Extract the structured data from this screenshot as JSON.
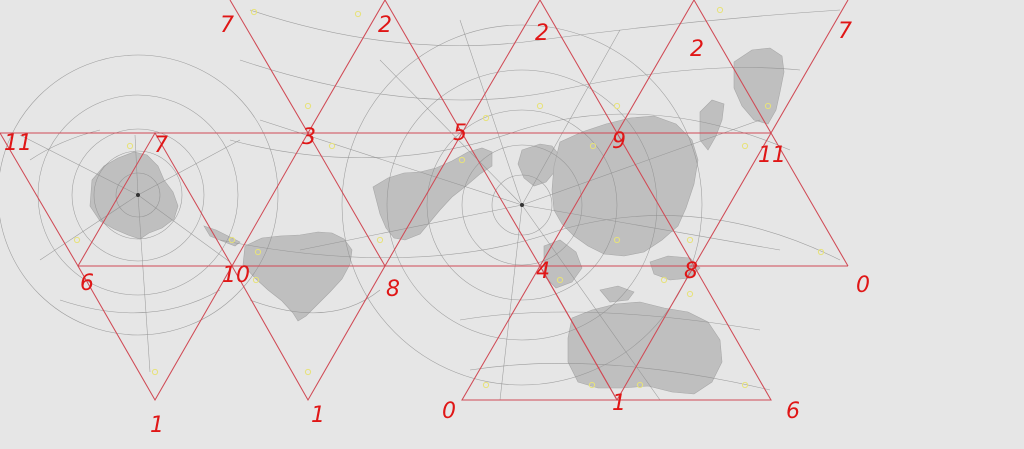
{
  "map": {
    "projection": "Dymaxion icosahedral (unfolded)",
    "colors": {
      "background": "#e6e6e6",
      "land": "#bfbfbf",
      "graticule": "#8f8f8f",
      "triangle_edges": "#d04a55",
      "label_ink": "#e01616",
      "vertex_markers": "#e7e27a"
    },
    "vertex_labels": [
      {
        "id": "lbl-7-top-left",
        "text": "7"
      },
      {
        "id": "lbl-2-top-a",
        "text": "2"
      },
      {
        "id": "lbl-2-top-b",
        "text": "2"
      },
      {
        "id": "lbl-2-top-c",
        "text": "2"
      },
      {
        "id": "lbl-7-top-right",
        "text": "7"
      },
      {
        "id": "lbl-11-left",
        "text": "11"
      },
      {
        "id": "lbl-7-mid",
        "text": "7"
      },
      {
        "id": "lbl-3",
        "text": "3"
      },
      {
        "id": "lbl-5",
        "text": "5"
      },
      {
        "id": "lbl-9",
        "text": "9"
      },
      {
        "id": "lbl-11-right",
        "text": "11"
      },
      {
        "id": "lbl-6-left",
        "text": "6"
      },
      {
        "id": "lbl-10",
        "text": "10"
      },
      {
        "id": "lbl-8",
        "text": "8"
      },
      {
        "id": "lbl-4",
        "text": "4"
      },
      {
        "id": "lbl-8-right",
        "text": "8"
      },
      {
        "id": "lbl-0-right",
        "text": "0"
      },
      {
        "id": "lbl-1-a",
        "text": "1"
      },
      {
        "id": "lbl-1-b",
        "text": "1"
      },
      {
        "id": "lbl-1-c",
        "text": "1"
      },
      {
        "id": "lbl-0-bottom",
        "text": "0"
      },
      {
        "id": "lbl-6-bottom-right",
        "text": "6"
      }
    ]
  }
}
